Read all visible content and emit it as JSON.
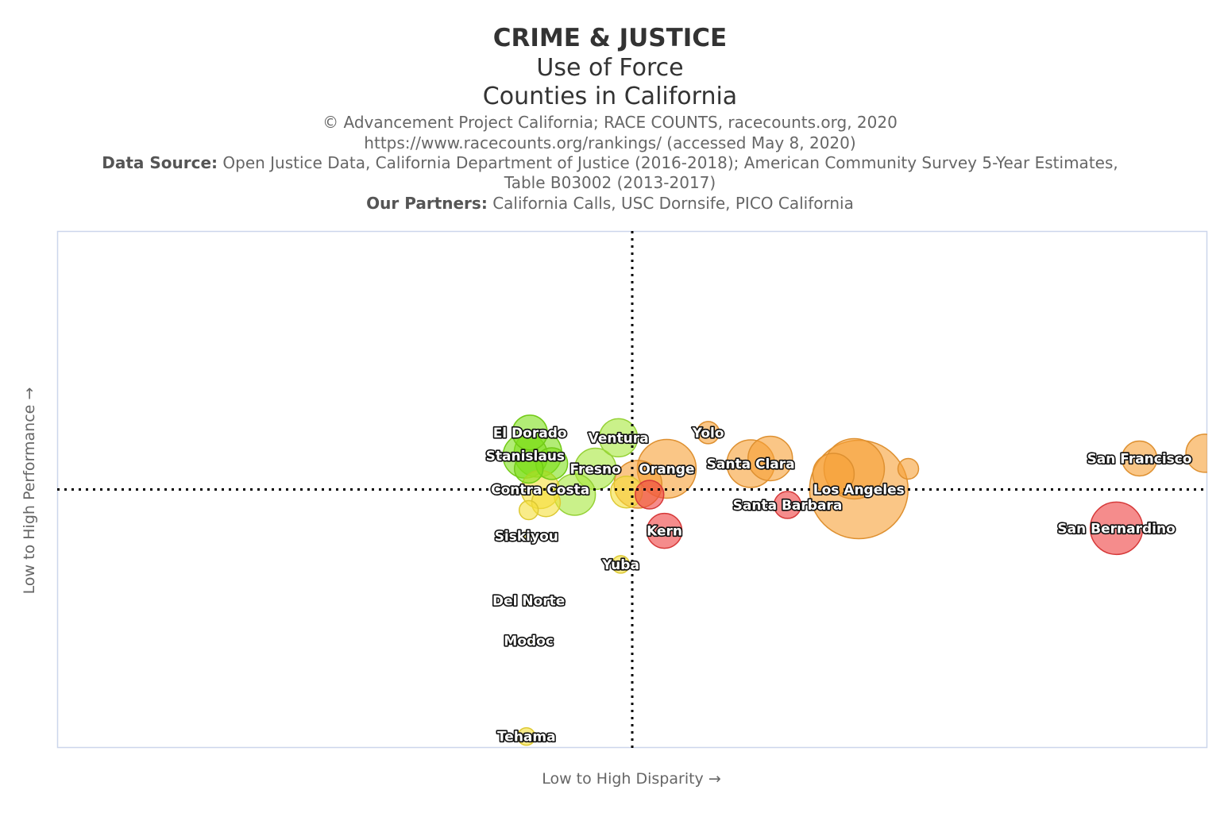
{
  "header": {
    "title": "CRIME & JUSTICE",
    "subtitle_1": "Use of Force",
    "subtitle_2": "Counties in California",
    "credit": "© Advancement Project California; RACE COUNTS, racecounts.org, 2020",
    "url": "https://www.racecounts.org/rankings/ (accessed May 8, 2020)",
    "source_label": "Data Source:",
    "source_text_1": "Open Justice Data, California Department of Justice (2016-2018); American Community Survey 5-Year Estimates,",
    "source_text_2": "Table B03002 (2013-2017)",
    "partners_label": "Our Partners:",
    "partners_text": "California Calls, USC Dornsife, PICO California"
  },
  "colors": {
    "green": "#7fe01a",
    "light_green": "#a6e83c",
    "yellow": "#f5df3a",
    "orange": "#f7a035",
    "red": "#ee3f3f",
    "guide_line": "#000000",
    "plot_border": "#ccd6eb"
  },
  "chart_data": {
    "type": "scatter",
    "xlabel": "Low to High Disparity →",
    "ylabel": "Low to High Performance →",
    "xlim": [
      0,
      1
    ],
    "ylim": [
      0,
      1
    ],
    "grid": false,
    "guide_lines": {
      "x": 0.5,
      "y": 0.5
    },
    "points": [
      {
        "name": "El Dorado",
        "x": 0.411,
        "y": 0.61,
        "size": 22,
        "color": "green",
        "labeled": true
      },
      {
        "name": "",
        "x": 0.418,
        "y": 0.57,
        "size": 30,
        "color": "green",
        "labeled": false
      },
      {
        "name": "Stanislaus",
        "x": 0.407,
        "y": 0.565,
        "size": 28,
        "color": "green",
        "labeled": true
      },
      {
        "name": "",
        "x": 0.43,
        "y": 0.55,
        "size": 20,
        "color": "green",
        "labeled": false
      },
      {
        "name": "",
        "x": 0.41,
        "y": 0.54,
        "size": 18,
        "color": "green",
        "labeled": false
      },
      {
        "name": "Ventura",
        "x": 0.488,
        "y": 0.6,
        "size": 24,
        "color": "light_green",
        "labeled": true
      },
      {
        "name": "Fresno",
        "x": 0.468,
        "y": 0.54,
        "size": 26,
        "color": "light_green",
        "labeled": true
      },
      {
        "name": "",
        "x": 0.45,
        "y": 0.49,
        "size": 26,
        "color": "light_green",
        "labeled": false
      },
      {
        "name": "Contra Costa",
        "x": 0.42,
        "y": 0.5,
        "size": 24,
        "color": "yellow",
        "labeled": true
      },
      {
        "name": "",
        "x": 0.425,
        "y": 0.475,
        "size": 18,
        "color": "yellow",
        "labeled": false
      },
      {
        "name": "",
        "x": 0.41,
        "y": 0.46,
        "size": 12,
        "color": "yellow",
        "labeled": false
      },
      {
        "name": "",
        "x": 0.495,
        "y": 0.495,
        "size": 20,
        "color": "yellow",
        "labeled": false
      },
      {
        "name": "Siskiyou",
        "x": 0.408,
        "y": 0.41,
        "size": 5,
        "color": "yellow",
        "labeled": true
      },
      {
        "name": "Yuba",
        "x": 0.49,
        "y": 0.355,
        "size": 11,
        "color": "yellow",
        "labeled": true
      },
      {
        "name": "Del Norte",
        "x": 0.41,
        "y": 0.285,
        "size": 5,
        "color": "yellow",
        "labeled": true
      },
      {
        "name": "Modoc",
        "x": 0.41,
        "y": 0.207,
        "size": 3,
        "color": "yellow",
        "labeled": true
      },
      {
        "name": "Tehama",
        "x": 0.408,
        "y": 0.022,
        "size": 11,
        "color": "yellow",
        "labeled": true
      },
      {
        "name": "Orange",
        "x": 0.53,
        "y": 0.54,
        "size": 37,
        "color": "orange",
        "labeled": true
      },
      {
        "name": "",
        "x": 0.505,
        "y": 0.51,
        "size": 30,
        "color": "orange",
        "labeled": false
      },
      {
        "name": "Yolo",
        "x": 0.566,
        "y": 0.61,
        "size": 14,
        "color": "orange",
        "labeled": true
      },
      {
        "name": "Santa Clara",
        "x": 0.603,
        "y": 0.55,
        "size": 30,
        "color": "orange",
        "labeled": true
      },
      {
        "name": "",
        "x": 0.62,
        "y": 0.56,
        "size": 28,
        "color": "orange",
        "labeled": false
      },
      {
        "name": "Los Angeles",
        "x": 0.697,
        "y": 0.5,
        "size": 62,
        "color": "orange",
        "labeled": true
      },
      {
        "name": "",
        "x": 0.693,
        "y": 0.54,
        "size": 38,
        "color": "orange",
        "labeled": false
      },
      {
        "name": "",
        "x": 0.675,
        "y": 0.53,
        "size": 26,
        "color": "orange",
        "labeled": false
      },
      {
        "name": "",
        "x": 0.74,
        "y": 0.54,
        "size": 13,
        "color": "orange",
        "labeled": false
      },
      {
        "name": "San Francisco",
        "x": 0.941,
        "y": 0.56,
        "size": 22,
        "color": "orange",
        "labeled": true
      },
      {
        "name": "",
        "x": 0.998,
        "y": 0.57,
        "size": 24,
        "color": "orange",
        "labeled": false
      },
      {
        "name": "",
        "x": 0.515,
        "y": 0.49,
        "size": 18,
        "color": "red",
        "labeled": false
      },
      {
        "name": "Kern",
        "x": 0.528,
        "y": 0.42,
        "size": 22,
        "color": "red",
        "labeled": true
      },
      {
        "name": "Santa Barbara",
        "x": 0.635,
        "y": 0.47,
        "size": 17,
        "color": "red",
        "labeled": true
      },
      {
        "name": "San Bernardino",
        "x": 0.921,
        "y": 0.425,
        "size": 33,
        "color": "red",
        "labeled": true
      }
    ]
  }
}
